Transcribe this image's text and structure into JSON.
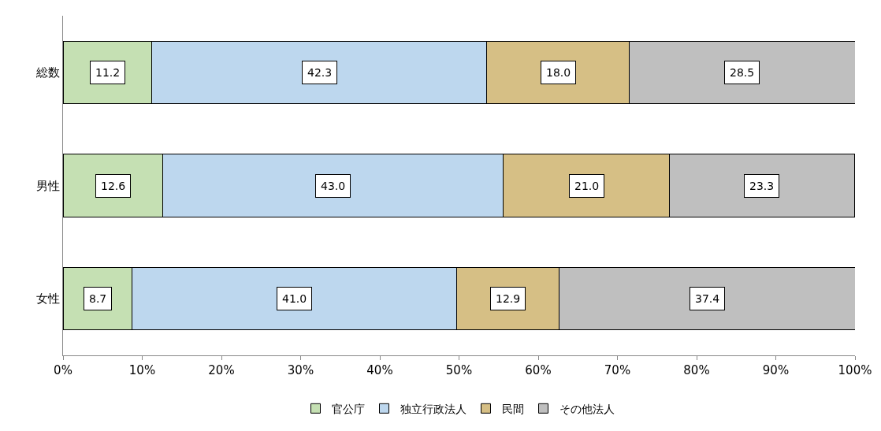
{
  "chart_data": {
    "type": "bar",
    "orientation": "horizontal",
    "stacked": true,
    "legend": "bottom",
    "categories": [
      "総数",
      "男性",
      "女性"
    ],
    "series": [
      {
        "name": "官公庁",
        "color": "#c5e0b3",
        "values": [
          11.2,
          12.6,
          8.7
        ],
        "value_labels": [
          "11.2",
          "12.6",
          "8.7"
        ]
      },
      {
        "name": "独立行政法人",
        "color": "#bdd7ee",
        "values": [
          42.3,
          43.0,
          41.0
        ],
        "value_labels": [
          "42.3",
          "43.0",
          "41.0"
        ]
      },
      {
        "name": "民間",
        "color": "#d6bf85",
        "values": [
          18.0,
          21.0,
          12.9
        ],
        "value_labels": [
          "18.0",
          "21.0",
          "12.9"
        ]
      },
      {
        "name": "その他法人",
        "color": "#bfbfbf",
        "values": [
          28.5,
          23.3,
          37.4
        ],
        "value_labels": [
          "28.5",
          "23.3",
          "37.4"
        ]
      }
    ],
    "xlim": [
      0,
      100
    ],
    "xticks": [
      {
        "value": 0,
        "label": "0%"
      },
      {
        "value": 10,
        "label": "10%"
      },
      {
        "value": 20,
        "label": "20%"
      },
      {
        "value": 30,
        "label": "30%"
      },
      {
        "value": 40,
        "label": "40%"
      },
      {
        "value": 50,
        "label": "50%"
      },
      {
        "value": 60,
        "label": "60%"
      },
      {
        "value": 70,
        "label": "70%"
      },
      {
        "value": 80,
        "label": "80%"
      },
      {
        "value": 90,
        "label": "90%"
      },
      {
        "value": 100,
        "label": "100%"
      }
    ]
  }
}
